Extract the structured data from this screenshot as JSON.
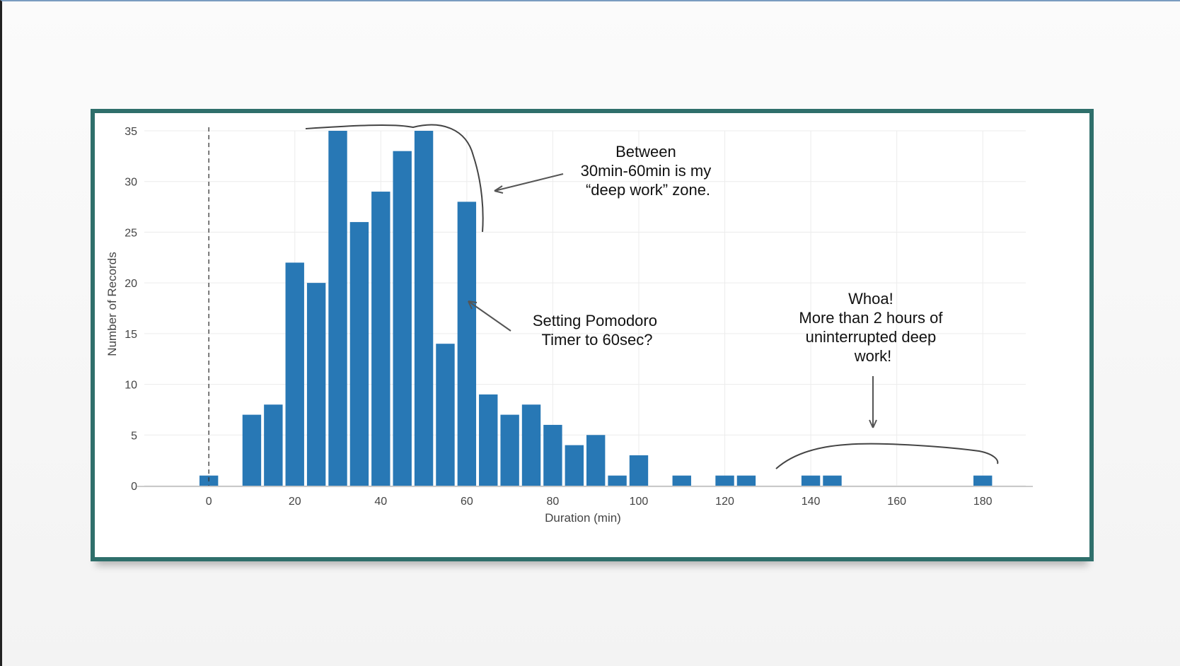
{
  "chart_data": {
    "type": "bar",
    "xlabel": "Duration (min)",
    "ylabel": "Number of Records",
    "xlim": [
      -15,
      190
    ],
    "ylim": [
      0,
      35
    ],
    "x_ticks": [
      0,
      20,
      40,
      60,
      80,
      100,
      120,
      140,
      160,
      180
    ],
    "x_tick_labels": [
      "0",
      "20",
      "40",
      "60",
      "80",
      "100",
      "120",
      "140",
      "160",
      "180"
    ],
    "y_ticks": [
      0,
      5,
      10,
      15,
      20,
      25,
      30,
      35
    ],
    "y_tick_labels": [
      "0",
      "5",
      "10",
      "15",
      "20",
      "25",
      "30",
      "35"
    ],
    "bar_color": "#2878b5",
    "bin_width": 5,
    "grid": true,
    "reference_line_x": 0,
    "bars": [
      {
        "x": 0,
        "value": 1
      },
      {
        "x": 10,
        "value": 7
      },
      {
        "x": 15,
        "value": 8
      },
      {
        "x": 20,
        "value": 22
      },
      {
        "x": 25,
        "value": 20
      },
      {
        "x": 30,
        "value": 35
      },
      {
        "x": 35,
        "value": 26
      },
      {
        "x": 40,
        "value": 29
      },
      {
        "x": 45,
        "value": 33
      },
      {
        "x": 50,
        "value": 35
      },
      {
        "x": 55,
        "value": 14
      },
      {
        "x": 60,
        "value": 28
      },
      {
        "x": 65,
        "value": 9
      },
      {
        "x": 70,
        "value": 7
      },
      {
        "x": 75,
        "value": 8
      },
      {
        "x": 80,
        "value": 6
      },
      {
        "x": 85,
        "value": 4
      },
      {
        "x": 90,
        "value": 5
      },
      {
        "x": 95,
        "value": 1
      },
      {
        "x": 100,
        "value": 3
      },
      {
        "x": 110,
        "value": 1
      },
      {
        "x": 120,
        "value": 1
      },
      {
        "x": 125,
        "value": 1
      },
      {
        "x": 140,
        "value": 1
      },
      {
        "x": 145,
        "value": 1
      },
      {
        "x": 180,
        "value": 1
      }
    ],
    "annotations": [
      {
        "lines": [
          "Between",
          "30min-60min is my",
          "“deep work” zone."
        ]
      },
      {
        "lines": [
          "Setting Pomodoro",
          "Timer to 60sec?"
        ]
      },
      {
        "lines": [
          "Whoa!",
          "More than 2 hours of",
          "uninterrupted deep",
          "work!"
        ]
      }
    ]
  }
}
